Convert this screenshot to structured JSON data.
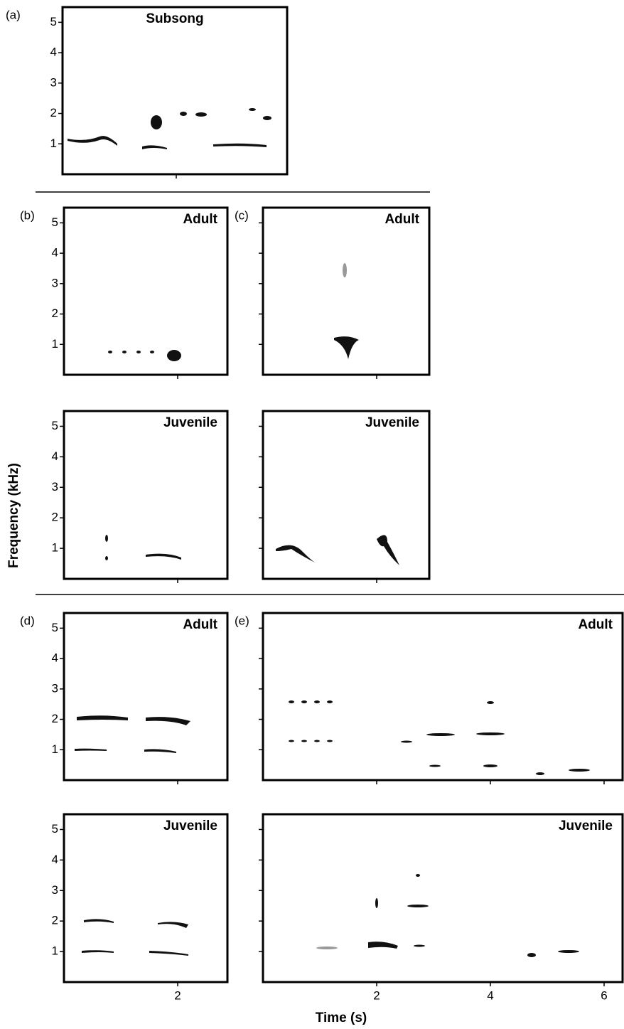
{
  "figure": {
    "y_label": "Frequency (kHz)",
    "x_label": "Time (s)",
    "panels": [
      {
        "label": "(a)",
        "title": "Subsong",
        "xlim": [
          0,
          3.95
        ],
        "ylim": [
          0,
          5.5
        ],
        "yticks": [
          1,
          2,
          3,
          4,
          5
        ],
        "ytick_labels": true,
        "xticks": [
          2
        ],
        "xtick_labels": false
      },
      {
        "label": "(b)",
        "title": "Adult",
        "xlim": [
          0,
          2.875
        ],
        "ylim": [
          0,
          5.5
        ],
        "yticks": [
          1,
          2,
          3,
          4,
          5
        ],
        "ytick_labels": true,
        "xticks": [
          2
        ],
        "xtick_labels": false
      },
      {
        "label": "(c)",
        "title": "Adult",
        "xlim": [
          0,
          2.925
        ],
        "ylim": [
          0,
          5.5
        ],
        "yticks": [
          1,
          2,
          3,
          4,
          5
        ],
        "ytick_labels": false,
        "xticks": [
          2
        ],
        "xtick_labels": false
      },
      {
        "title": "Juvenile",
        "xlim": [
          0,
          2.875
        ],
        "ylim": [
          0,
          5.5
        ],
        "yticks": [
          1,
          2,
          3,
          4,
          5
        ],
        "ytick_labels": true,
        "xticks": [
          2
        ],
        "xtick_labels": false
      },
      {
        "title": "Juvenile",
        "xlim": [
          0,
          2.925
        ],
        "ylim": [
          0,
          5.5
        ],
        "yticks": [
          1,
          2,
          3,
          4,
          5
        ],
        "ytick_labels": false,
        "xticks": [
          2
        ],
        "xtick_labels": false
      },
      {
        "label": "(d)",
        "title": "Adult",
        "xlim": [
          0,
          2.875
        ],
        "ylim": [
          0,
          5.5
        ],
        "yticks": [
          1,
          2,
          3,
          4,
          5
        ],
        "ytick_labels": true,
        "xticks": [
          2
        ],
        "xtick_labels": false
      },
      {
        "label": "(e)",
        "title": "Adult",
        "xlim": [
          0,
          6.325
        ],
        "ylim": [
          0,
          5.5
        ],
        "yticks": [
          1,
          2,
          3,
          4,
          5
        ],
        "ytick_labels": false,
        "xticks": [
          2,
          4,
          6
        ],
        "xtick_labels": false
      },
      {
        "title": "Juvenile",
        "xlim": [
          0,
          2.875
        ],
        "ylim": [
          0,
          5.5
        ],
        "yticks": [
          1,
          2,
          3,
          4,
          5
        ],
        "ytick_labels": true,
        "xticks": [
          2
        ],
        "xtick_labels": true
      },
      {
        "title": "Juvenile",
        "xlim": [
          0,
          6.325
        ],
        "ylim": [
          0,
          5.5
        ],
        "yticks": [
          1,
          2,
          3,
          4,
          5
        ],
        "ytick_labels": false,
        "xticks": [
          2,
          4,
          6
        ],
        "xtick_labels": true
      }
    ]
  }
}
